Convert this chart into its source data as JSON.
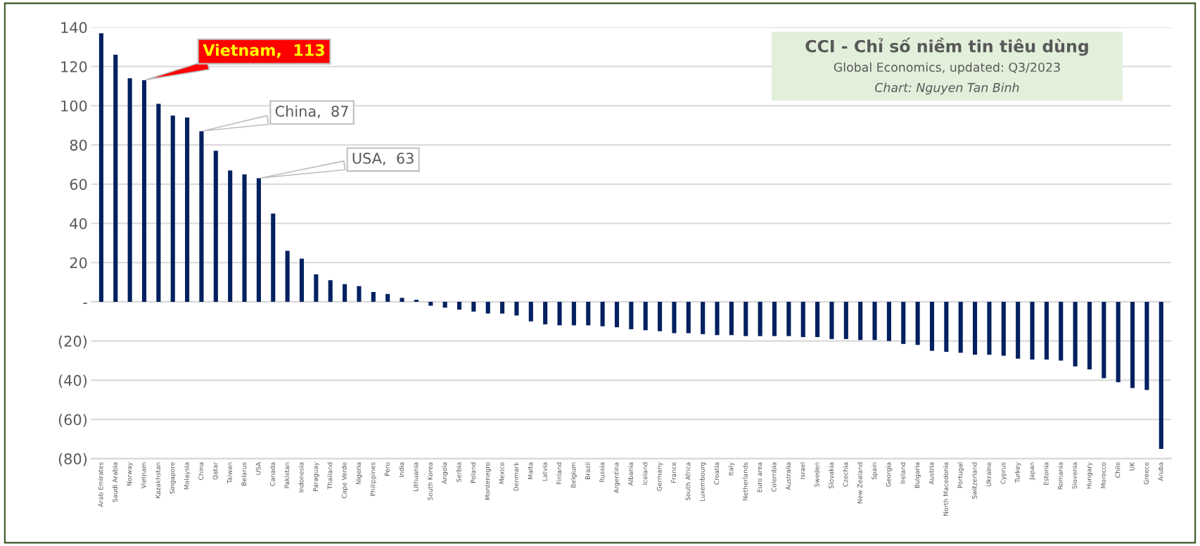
{
  "chart_data": {
    "type": "bar",
    "title": "CCI - Chỉ số niềm tin tiêu dùng",
    "subtitle": "Global Economics, updated: Q3/2023",
    "categories": [
      "Arab Emirates",
      "Saudi Arabia",
      "Norway",
      "Vietnam",
      "Kazakhstan",
      "Singapore",
      "Malaysia",
      "China",
      "Qatar",
      "Taiwan",
      "Belarus",
      "USA",
      "Canada",
      "Pakistan",
      "Indonesia",
      "Paraguay",
      "Thailand",
      "Cape Verde",
      "Nigeria",
      "Philippines",
      "Peru",
      "India",
      "Lithuania",
      "South Korea",
      "Angola",
      "Serbia",
      "Poland",
      "Montenegro",
      "Mexico",
      "Denmark",
      "Malta",
      "Latvia",
      "Finland",
      "Belgium",
      "Brazil",
      "Russia",
      "Argentina",
      "Albania",
      "Iceland",
      "Germany",
      "France",
      "South Africa",
      "Luxembourg",
      "Croatia",
      "Italy",
      "Netherlands",
      "Euro area",
      "Colombia",
      "Australia",
      "Israel",
      "Sweden",
      "Slovakia",
      "Czechia",
      "New Zealand",
      "Spain",
      "Georgia",
      "Ireland",
      "Bulgaria",
      "Austria",
      "North Macedonia",
      "Portugal",
      "Switzerland",
      "Ukraine",
      "Cyprus",
      "Turkey",
      "Japan",
      "Estonia",
      "Romania",
      "Slovenia",
      "Hungary",
      "Morocco",
      "Chile",
      "UK",
      "Greece",
      "Aruba"
    ],
    "values": [
      137,
      126,
      114,
      113,
      101,
      95,
      94,
      87,
      77,
      67,
      65,
      63,
      45,
      26,
      22,
      14,
      11,
      9,
      8,
      5,
      4,
      2,
      1,
      -2,
      -3,
      -4,
      -5,
      -6,
      -6,
      -7,
      -10,
      -11.5,
      -12,
      -12,
      -12,
      -12.5,
      -13,
      -14,
      -14.5,
      -15,
      -16,
      -16,
      -16.5,
      -17,
      -17,
      -17.5,
      -17.5,
      -17.5,
      -17.5,
      -18,
      -18,
      -19,
      -19,
      -19.5,
      -19.5,
      -20,
      -21.5,
      -22,
      -25,
      -25.5,
      -26,
      -27,
      -27,
      -27.5,
      -29,
      -29.5,
      -29.5,
      -30,
      -33,
      -34.5,
      -39,
      -41,
      -44,
      -45,
      -75
    ],
    "color": "#002060",
    "ylim": [
      -80,
      140
    ],
    "yticks": [
      {
        "value": -80,
        "label": "(80)"
      },
      {
        "value": -60,
        "label": "(60)"
      },
      {
        "value": -40,
        "label": "(40)"
      },
      {
        "value": -20,
        "label": "(20)"
      },
      {
        "value": 0,
        "label": "-"
      },
      20,
      40,
      60,
      80,
      100,
      120,
      140
    ],
    "grid": "y",
    "annotations": [
      {
        "text": "Vietnam,  113",
        "x": "Vietnam",
        "y": 113
      },
      {
        "text": "China,  87",
        "x": "China",
        "y": 87
      },
      {
        "text": "USA,  63",
        "x": "USA",
        "y": 63
      },
      "Chart: Nguyen Tan Binh"
    ]
  }
}
